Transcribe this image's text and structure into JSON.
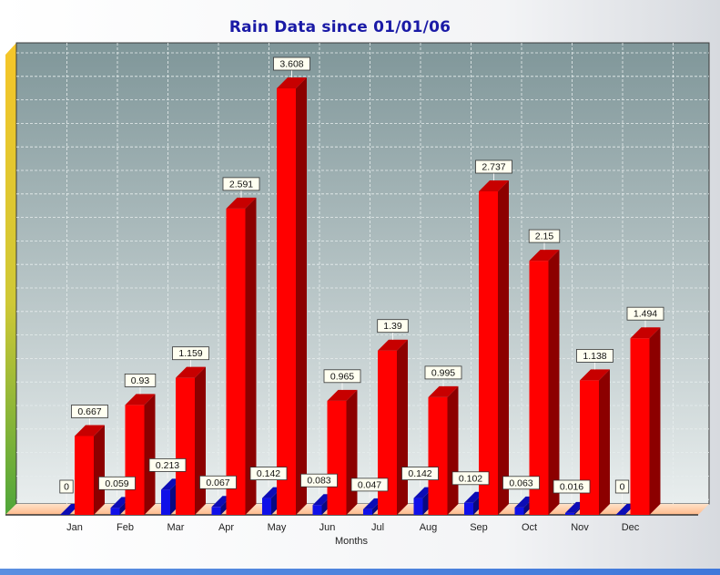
{
  "chart_data": {
    "type": "bar",
    "title": "Rain Data since 01/01/06",
    "xlabel": "Months",
    "ylabel": "",
    "categories": [
      "Jan",
      "Feb",
      "Mar",
      "Apr",
      "May",
      "Jun",
      "Jul",
      "Aug",
      "Sep",
      "Oct",
      "Nov",
      "Dec"
    ],
    "series": [
      {
        "color": "#1010e8",
        "values": [
          0,
          0.059,
          0.213,
          0.067,
          0.142,
          0.083,
          0.047,
          0.142,
          0.102,
          0.063,
          0.016,
          0
        ],
        "labels": [
          "0",
          "0.059",
          "0.213",
          "0.067",
          "0.142",
          "0.083",
          "0.047",
          "0.142",
          "0.102",
          "0.063",
          "0.016",
          "0"
        ]
      },
      {
        "color": "#ff0000",
        "values": [
          0.667,
          0.93,
          1.159,
          2.591,
          3.608,
          0.965,
          1.39,
          0.995,
          2.737,
          2.15,
          1.138,
          1.494
        ],
        "labels": [
          "0.667",
          "0.93",
          "1.159",
          "2.591",
          "3.608",
          "0.965",
          "1.39",
          "0.995",
          "2.737",
          "2.15",
          "1.138",
          "1.494"
        ]
      }
    ],
    "ylim": [
      0,
      4
    ],
    "grid": true,
    "legend": "none"
  }
}
